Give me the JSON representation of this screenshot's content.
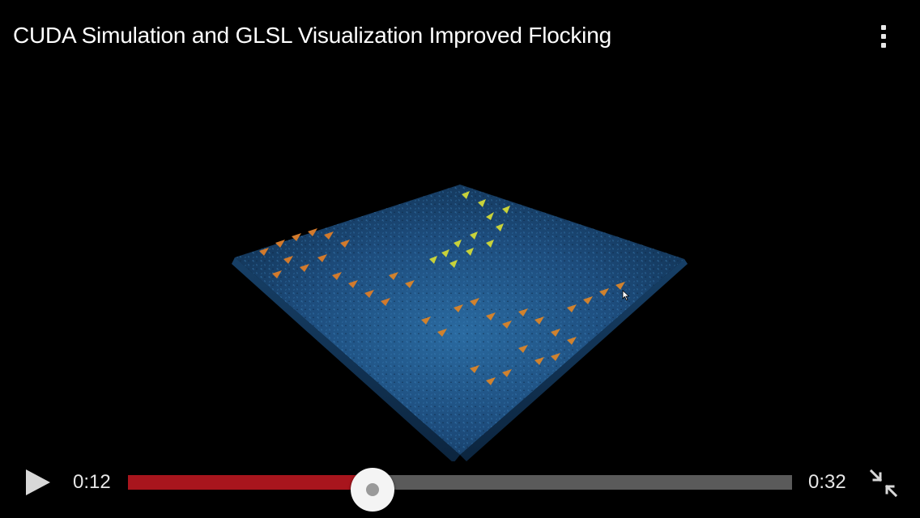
{
  "video": {
    "title": "CUDA Simulation and GLSL Visualization Improved Flocking",
    "current_time": "0:12",
    "total_time": "0:32",
    "progress_fraction": 0.368
  },
  "icons": {
    "menu": "more-vertical-icon",
    "play": "play-icon",
    "exit_fullscreen": "exit-fullscreen-icon",
    "cursor": "mouse-pointer-icon"
  },
  "colors": {
    "background": "#000000",
    "progress_played": "#a8151d",
    "progress_remaining": "#5a5a5a",
    "knob": "#f4f4f4",
    "terrain_base": "#1e4a78",
    "boid_orange": "#d27a2c",
    "boid_yellow": "#c8d23a"
  }
}
